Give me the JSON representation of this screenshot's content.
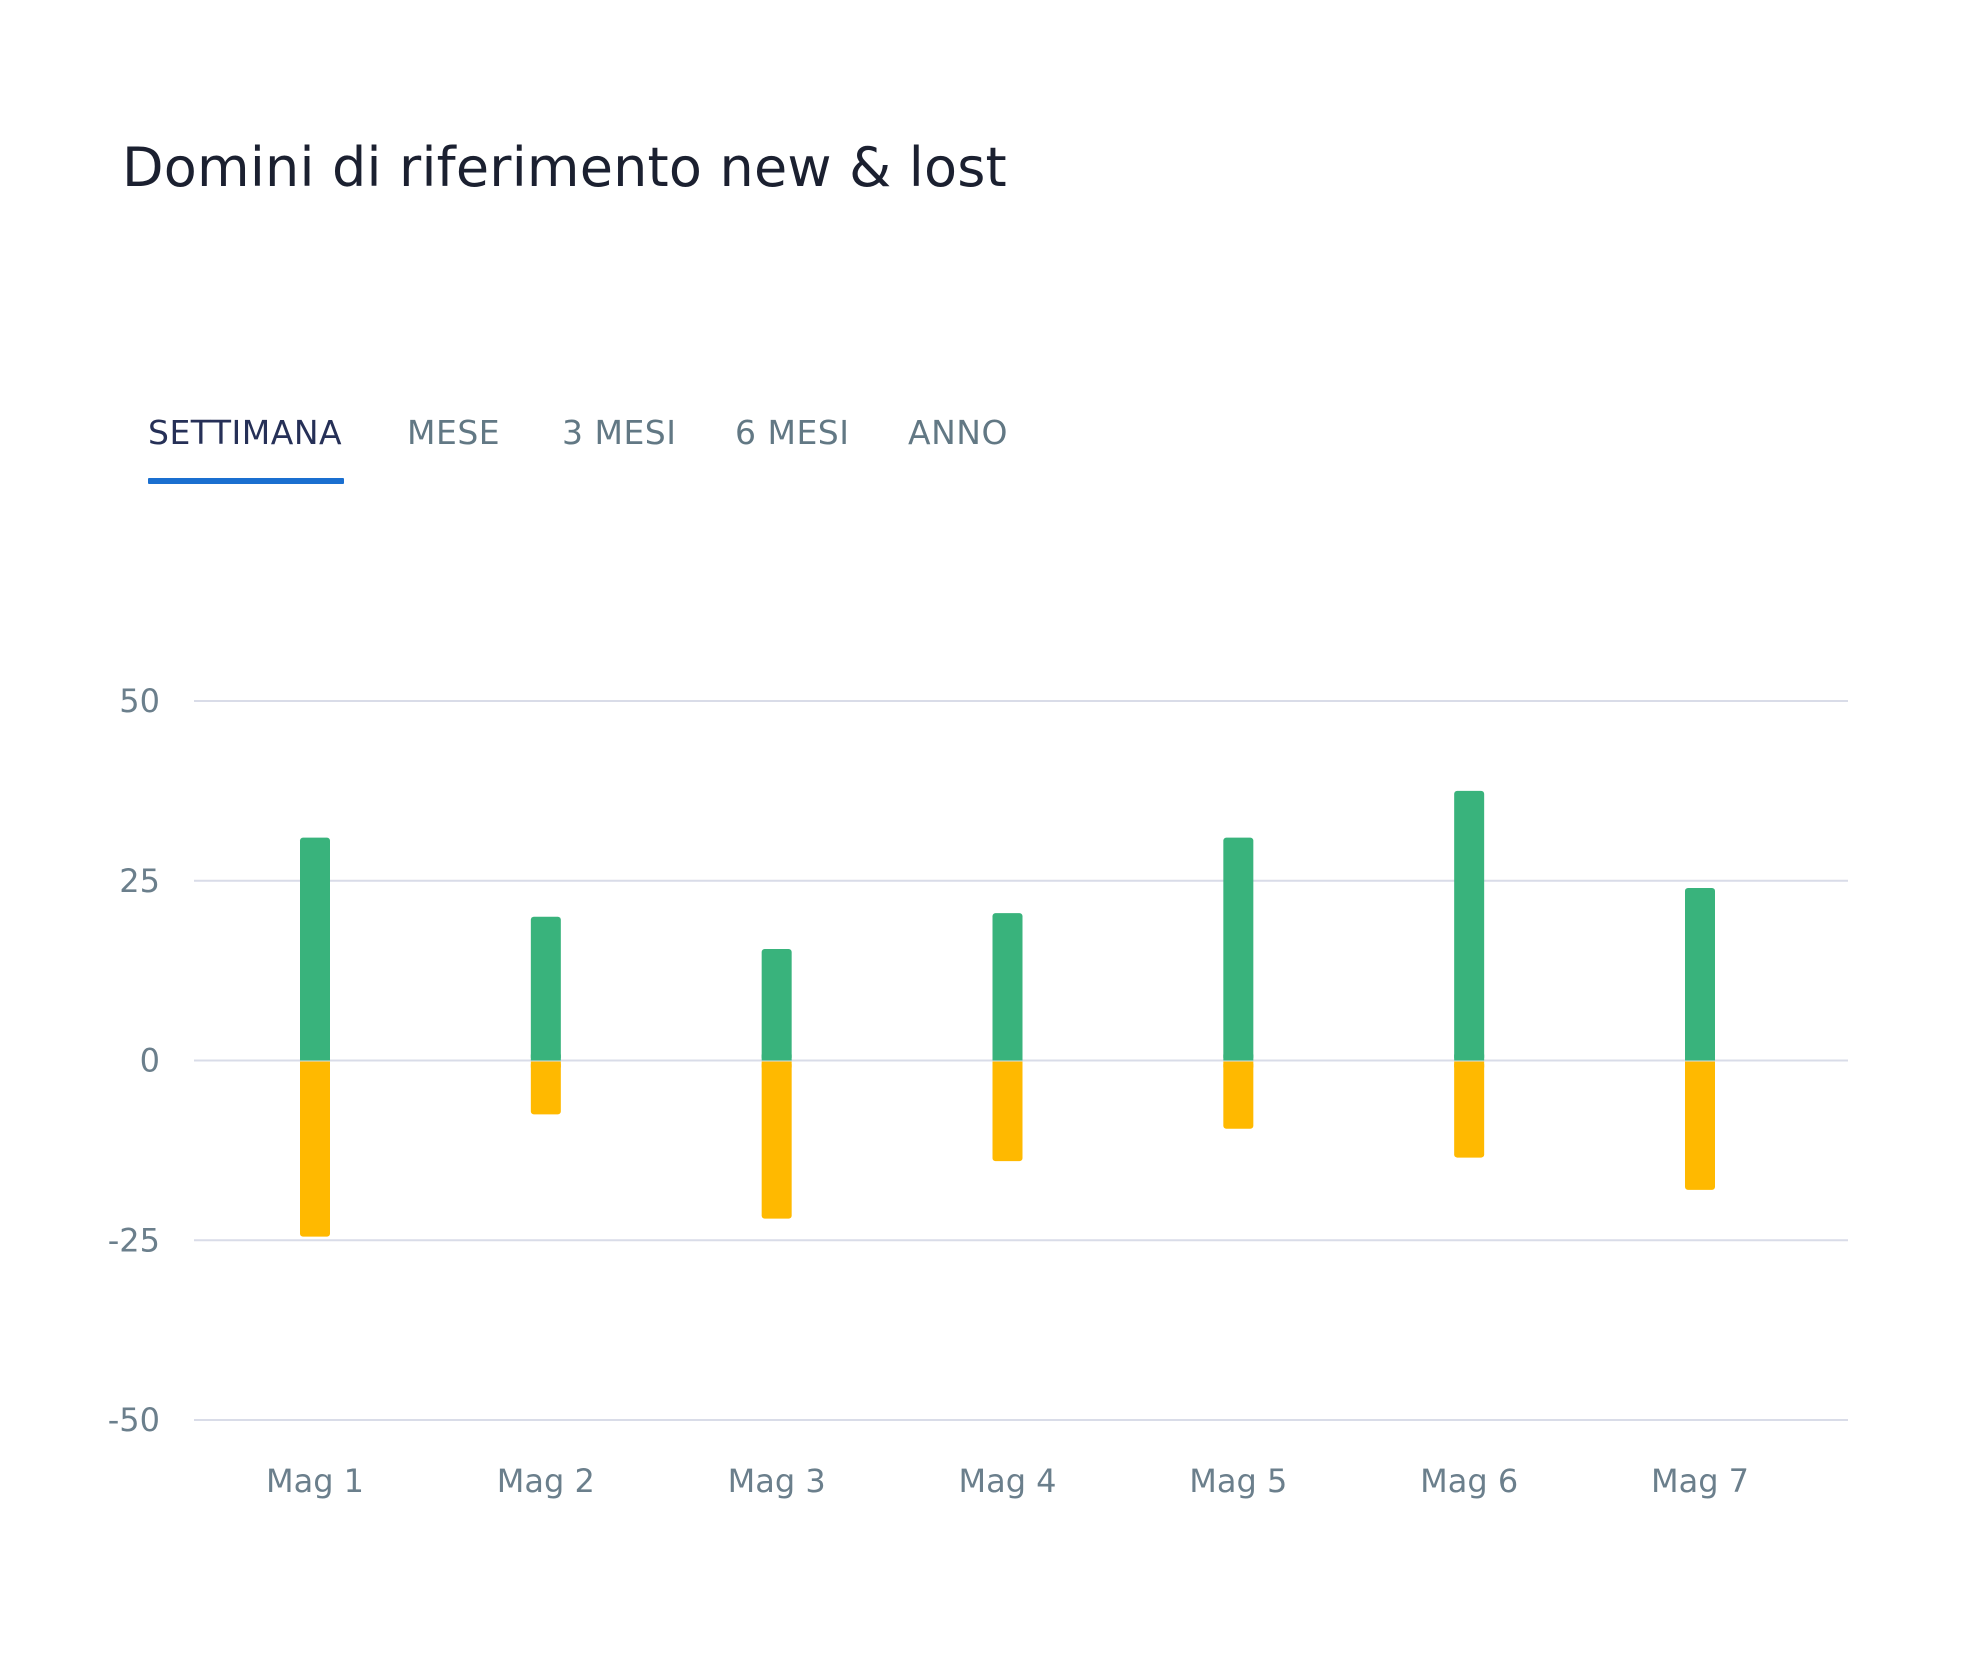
{
  "title": "Domini di riferimento new & lost",
  "tabs": [
    {
      "label": "SETTIMANA",
      "active": true
    },
    {
      "label": "MESE",
      "active": false
    },
    {
      "label": "3 MESI",
      "active": false
    },
    {
      "label": "6 MESI",
      "active": false
    },
    {
      "label": "ANNO",
      "active": false
    }
  ],
  "colors": {
    "new": "#39b37c",
    "lost": "#ffb900",
    "grid": "#d9dce8",
    "accent": "#1a6fd0"
  },
  "chart_data": {
    "type": "bar",
    "title": "Domini di riferimento new & lost",
    "categories": [
      "Mag 1",
      "Mag 2",
      "Mag 3",
      "Mag 4",
      "Mag 5",
      "Mag 6",
      "Mag 7"
    ],
    "series": [
      {
        "values": [
          31,
          20,
          15.5,
          20.5,
          31,
          37.5,
          24
        ]
      },
      {
        "values": [
          -24.5,
          -7.5,
          -22,
          -14,
          -9.5,
          -13.5,
          -18
        ]
      }
    ],
    "stacked": true,
    "y_ticks": [
      "50",
      "25",
      "0",
      "-25",
      "-50"
    ],
    "ylim": [
      -50,
      50
    ],
    "grid": true,
    "legend": false
  }
}
